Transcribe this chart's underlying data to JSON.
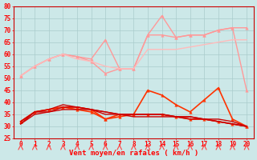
{
  "background_color": "#cce8e8",
  "grid_color": "#aacccc",
  "xlabel": "Vent moyen/en rafales ( km/h )",
  "xlabel_color": "#ff0000",
  "ylabel_color": "#ff0000",
  "ylim": [
    25,
    80
  ],
  "yticks": [
    25,
    30,
    35,
    40,
    45,
    50,
    55,
    60,
    65,
    70,
    75,
    80
  ],
  "x_values": [
    0,
    1,
    2,
    3,
    4,
    5,
    6,
    7,
    8,
    13,
    14,
    15,
    16,
    17,
    18,
    19,
    20
  ],
  "x_labels": [
    "0",
    "1",
    "2",
    "3",
    "4",
    "5",
    "6",
    "7",
    "8",
    "13",
    "14",
    "15",
    "16",
    "17",
    "18",
    "19",
    "20"
  ],
  "series": [
    {
      "name": "rafales_high",
      "color": "#ff9999",
      "linewidth": 1.0,
      "marker": "^",
      "markersize": 2.5,
      "values": [
        51,
        55,
        58,
        60,
        59,
        58,
        66,
        54,
        54,
        68,
        76,
        67,
        68,
        68,
        70,
        71,
        71
      ]
    },
    {
      "name": "rafales_low",
      "color": "#ff9999",
      "linewidth": 1.0,
      "marker": "^",
      "markersize": 2.5,
      "values": [
        51,
        55,
        58,
        60,
        59,
        57,
        52,
        54,
        54,
        68,
        68,
        67,
        68,
        68,
        70,
        71,
        45
      ]
    },
    {
      "name": "rafales_mid",
      "color": "#ffbbbb",
      "linewidth": 1.0,
      "marker": null,
      "markersize": 0,
      "values": [
        51,
        55,
        58,
        60,
        58,
        57,
        55,
        54,
        54,
        62,
        62,
        62,
        63,
        64,
        65,
        66,
        66
      ]
    },
    {
      "name": "vent_high",
      "color": "#ff3300",
      "linewidth": 1.2,
      "marker": "^",
      "markersize": 2.5,
      "values": [
        32,
        36,
        37,
        38,
        38,
        37,
        33,
        35,
        35,
        45,
        43,
        39,
        36,
        41,
        46,
        33,
        30
      ]
    },
    {
      "name": "vent_low",
      "color": "#ff3300",
      "linewidth": 1.2,
      "marker": "^",
      "markersize": 2.5,
      "values": [
        32,
        36,
        37,
        38,
        37,
        36,
        33,
        34,
        35,
        35,
        35,
        34,
        33,
        33,
        32,
        31,
        30
      ]
    },
    {
      "name": "vent_mid1",
      "color": "#cc0000",
      "linewidth": 1.0,
      "marker": null,
      "markersize": 0,
      "values": [
        32,
        36,
        37,
        39,
        38,
        37,
        36,
        35,
        35,
        35,
        35,
        34,
        34,
        33,
        33,
        32,
        30
      ]
    },
    {
      "name": "vent_mid2",
      "color": "#cc0000",
      "linewidth": 1.0,
      "marker": null,
      "markersize": 0,
      "values": [
        31,
        36,
        36,
        38,
        38,
        37,
        36,
        35,
        35,
        35,
        35,
        34,
        34,
        33,
        32,
        31,
        30
      ]
    },
    {
      "name": "vent_mid3",
      "color": "#cc0000",
      "linewidth": 1.0,
      "marker": null,
      "markersize": 0,
      "values": [
        31,
        35,
        36,
        37,
        37,
        37,
        35,
        35,
        34,
        34,
        34,
        34,
        33,
        33,
        32,
        31,
        30
      ]
    }
  ],
  "arrow_color": "#ff4444"
}
